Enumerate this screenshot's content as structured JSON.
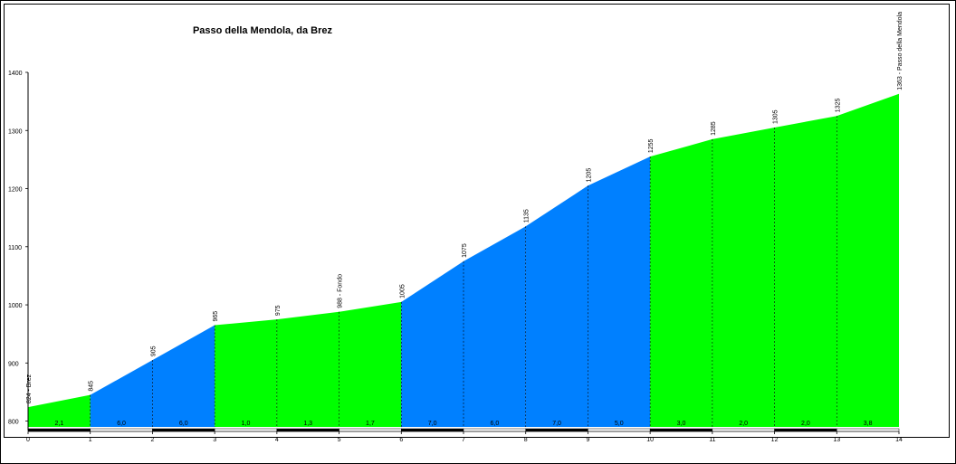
{
  "chart_data": {
    "type": "area",
    "title": "Passo della Mendola, da Brez",
    "xlabel": "",
    "ylabel": "",
    "xlim": [
      0,
      14
    ],
    "ylim": [
      790,
      1400
    ],
    "x_ticks": [
      "0",
      "1",
      "2",
      "3",
      "4",
      "5",
      "6",
      "7",
      "8",
      "9",
      "10",
      "11",
      "12",
      "13",
      "14"
    ],
    "y_ticks": [
      "800",
      "900",
      "1000",
      "1100",
      "1200",
      "1300",
      "1400"
    ],
    "grid": false,
    "profile": [
      {
        "x": 0,
        "y": 824
      },
      {
        "x": 1,
        "y": 845
      },
      {
        "x": 2,
        "y": 905
      },
      {
        "x": 3,
        "y": 965
      },
      {
        "x": 4,
        "y": 975
      },
      {
        "x": 5,
        "y": 988
      },
      {
        "x": 6,
        "y": 1005
      },
      {
        "x": 7,
        "y": 1075
      },
      {
        "x": 8,
        "y": 1135
      },
      {
        "x": 9,
        "y": 1205
      },
      {
        "x": 10,
        "y": 1255
      },
      {
        "x": 11,
        "y": 1285
      },
      {
        "x": 12,
        "y": 1305
      },
      {
        "x": 13,
        "y": 1325
      },
      {
        "x": 14,
        "y": 1363
      }
    ],
    "point_labels": [
      "824 - Brez",
      "845",
      "905",
      "965",
      "975",
      "988 - Fondo",
      "1005",
      "1075",
      "1135",
      "1205",
      "1255",
      "1285",
      "1305",
      "1325",
      "1363 - Passo della Mendola"
    ],
    "gradients": [
      "2,1",
      "6,0",
      "6,0",
      "1,0",
      "1,3",
      "1,7",
      "7,0",
      "6,0",
      "7,0",
      "5,0",
      "3,0",
      "2,0",
      "2,0",
      "3,8"
    ],
    "segment_colors": [
      "#00ff00",
      "#0080ff",
      "#0080ff",
      "#00ff00",
      "#00ff00",
      "#00ff00",
      "#0080ff",
      "#0080ff",
      "#0080ff",
      "#0080ff",
      "#00ff00",
      "#00ff00",
      "#00ff00",
      "#00ff00"
    ],
    "colors": {
      "easy": "#00ff00",
      "steep": "#0080ff",
      "axis": "#000000"
    }
  }
}
